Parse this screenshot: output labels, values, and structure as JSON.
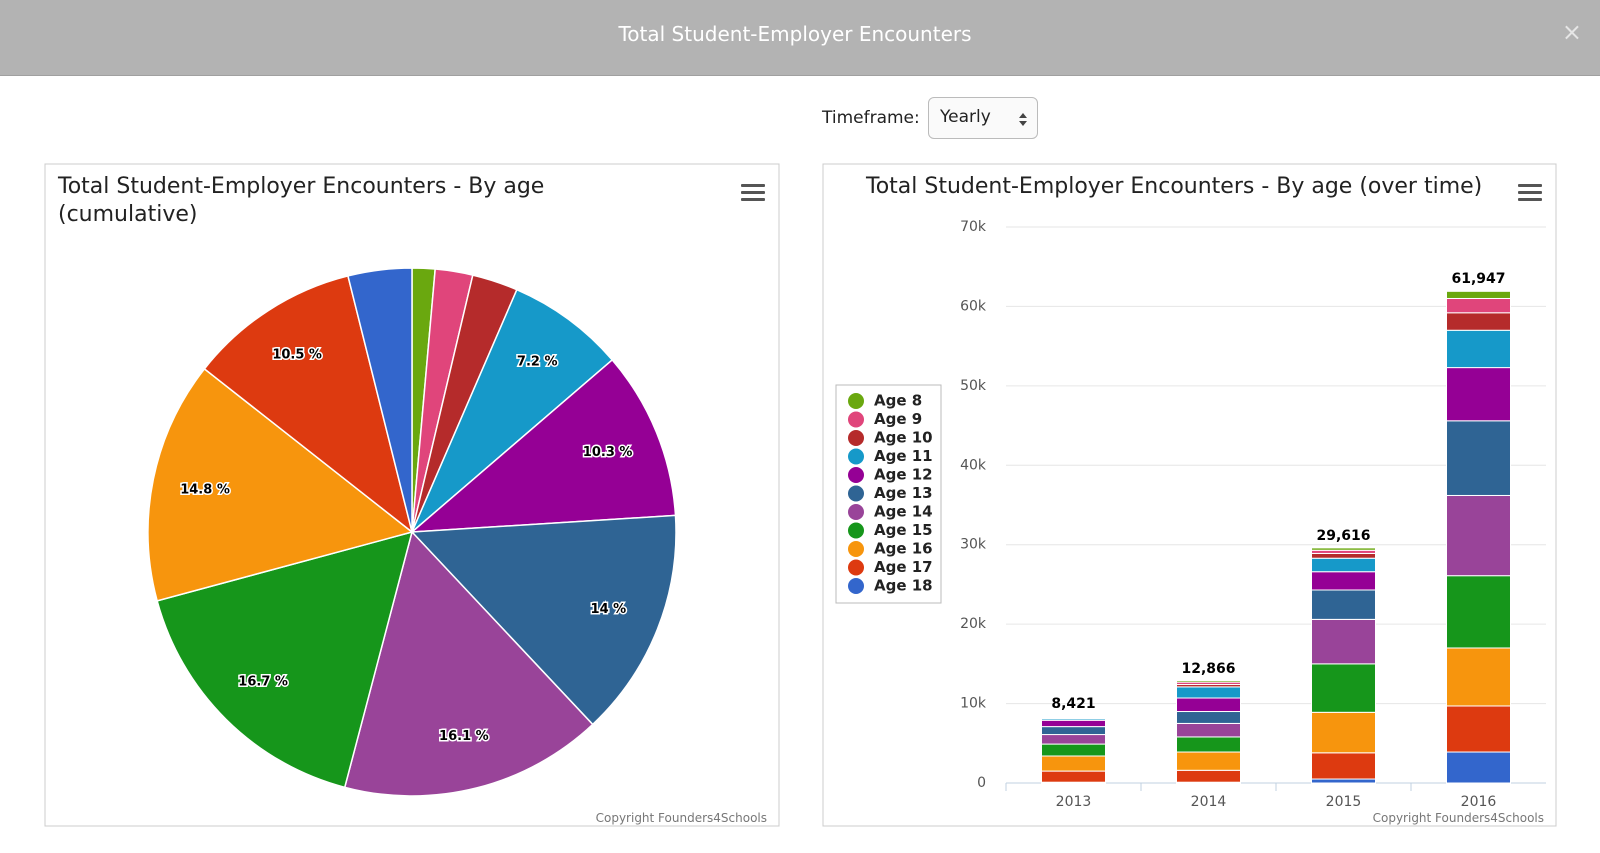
{
  "header": {
    "title": "Total Student-Employer Encounters",
    "close": "×"
  },
  "controls": {
    "timeframe_label": "Timeframe:",
    "timeframe_value": "Yearly"
  },
  "chart_data": [
    {
      "type": "pie",
      "title": "Total Student-Employer Encounters - By age (cumulative)",
      "credit": "Copyright Founders4Schools",
      "values": [
        1.4,
        2.3,
        2.8,
        7.2,
        10.3,
        14,
        16.1,
        16.7,
        14.8,
        10.5,
        3.9
      ],
      "value_labels": [
        null,
        null,
        null,
        "7.2 %",
        "10.3 %",
        "14 %",
        "16.1 %",
        "16.7 %",
        "14.8 %",
        "10.5 %",
        null
      ],
      "colors": [
        "#6aa80f",
        "#e0457b",
        "#b52b2b",
        "#1699c9",
        "#950095",
        "#2f6494",
        "#994499",
        "#16961b",
        "#f7950d",
        "#dd3a10",
        "#3366cc"
      ]
    },
    {
      "type": "stacked_bar",
      "title": "Total Student-Employer Encounters - By age (over time)",
      "credit": "Copyright Founders4Schools",
      "categories": [
        "2013",
        "2014",
        "2015",
        "2016"
      ],
      "series": [
        {
          "name": "Age 8",
          "color": "#6aa80f",
          "values": [
            100,
            200,
            300,
            900
          ]
        },
        {
          "name": "Age 9",
          "color": "#e0457b",
          "values": [
            100,
            300,
            400,
            1800
          ]
        },
        {
          "name": "Age 10",
          "color": "#b52b2b",
          "values": [
            100,
            300,
            600,
            2200
          ]
        },
        {
          "name": "Age 11",
          "color": "#1699c9",
          "values": [
            200,
            1400,
            1700,
            4700
          ]
        },
        {
          "name": "Age 12",
          "color": "#950095",
          "values": [
            800,
            1700,
            2300,
            6700
          ]
        },
        {
          "name": "Age 13",
          "color": "#2f6494",
          "values": [
            1000,
            1500,
            3700,
            9400
          ]
        },
        {
          "name": "Age 14",
          "color": "#994499",
          "values": [
            1200,
            1700,
            5600,
            10100
          ]
        },
        {
          "name": "Age 15",
          "color": "#16961b",
          "values": [
            1500,
            1900,
            6100,
            9100
          ]
        },
        {
          "name": "Age 16",
          "color": "#f7950d",
          "values": [
            1900,
            2300,
            5100,
            7300
          ]
        },
        {
          "name": "Age 17",
          "color": "#dd3a10",
          "values": [
            1400,
            1500,
            3300,
            5800
          ]
        },
        {
          "name": "Age 18",
          "color": "#3366cc",
          "values": [
            100,
            100,
            500,
            3900
          ]
        }
      ],
      "totals": [
        8421,
        12866,
        29616,
        61947
      ],
      "total_labels": [
        "8,421",
        "12,866",
        "29,616",
        "61,947"
      ],
      "ylim": [
        0,
        70000
      ],
      "yticks": [
        0,
        {
          "value": 10000,
          "label": "10k"
        },
        {
          "value": 20000,
          "label": "20k"
        },
        {
          "value": 30000,
          "label": "30k"
        },
        {
          "value": 40000,
          "label": "40k"
        },
        {
          "value": 50000,
          "label": "50k"
        },
        {
          "value": 60000,
          "label": "60k"
        },
        {
          "value": 70000,
          "label": "70k"
        }
      ],
      "grid": true,
      "legend": "left"
    }
  ]
}
